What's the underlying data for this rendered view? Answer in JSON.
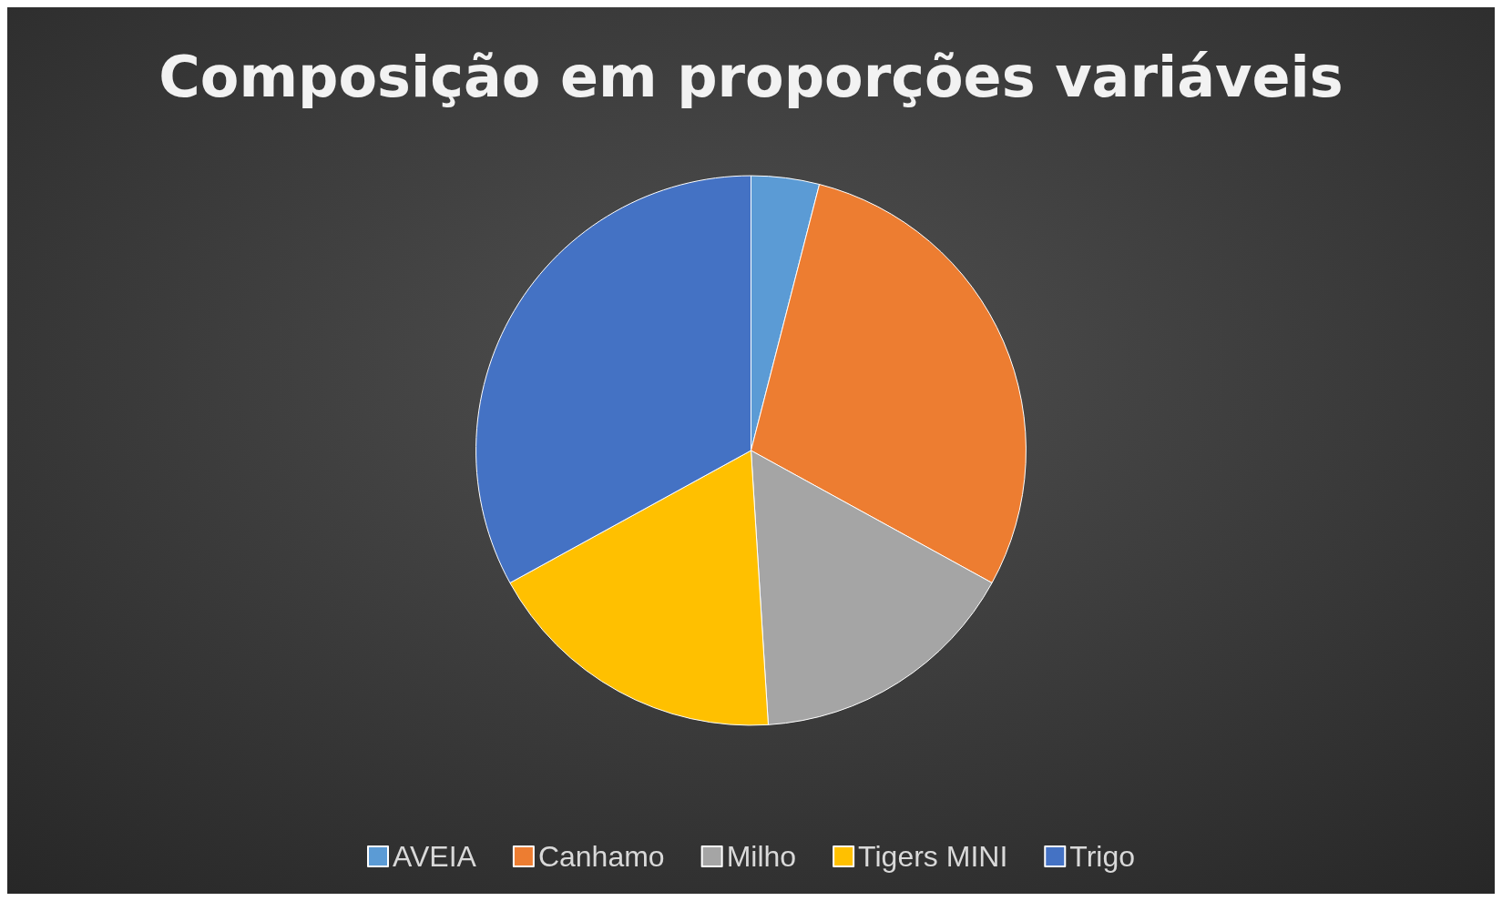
{
  "chart_data": {
    "type": "pie",
    "title": "Composição em proporções variáveis",
    "categories": [
      "AVEIA",
      "Canhamo",
      "Milho",
      "Tigers MINI",
      "Trigo"
    ],
    "values": [
      4,
      29,
      16,
      18,
      33
    ],
    "colors": [
      "#5b9bd5",
      "#ed7d31",
      "#a5a5a5",
      "#ffc000",
      "#4472c4"
    ],
    "legend": "bottom"
  }
}
